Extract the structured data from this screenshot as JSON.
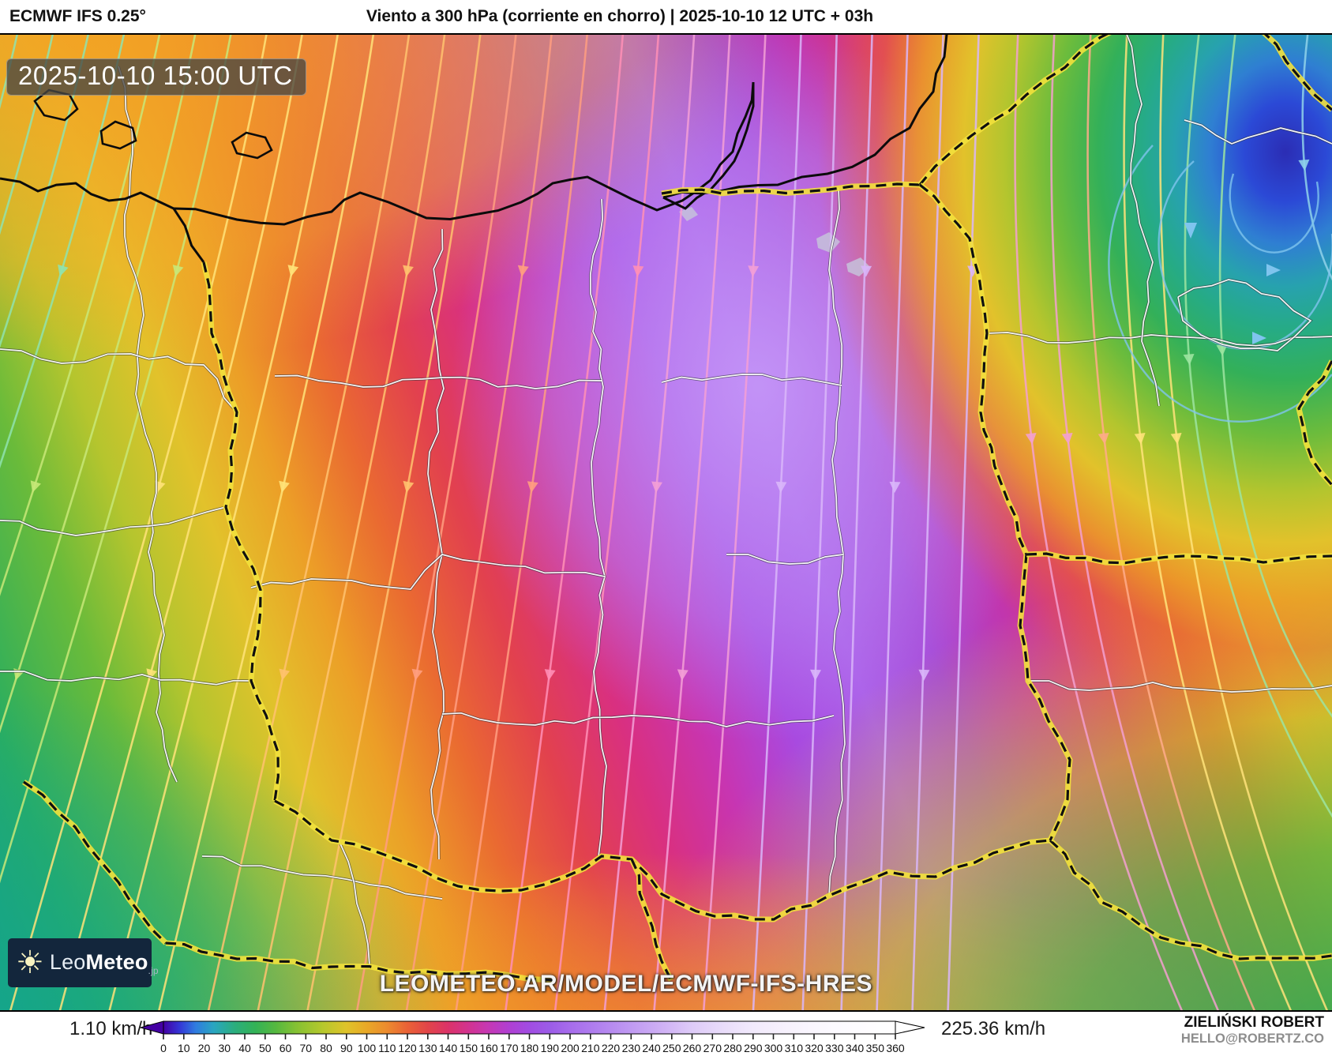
{
  "header": {
    "model_label": "ECMWF IFS 0.25°",
    "title": "Viento a 300 hPa (corriente en chorro) | 2025-10-10 12 UTC + 03h"
  },
  "map": {
    "timestamp_badge": "2025-10-10 15:00 UTC",
    "watermark": "LEOMETEO.AR/MODEL/ECMWF-IFS-HRES"
  },
  "logo": {
    "prefix": "Leo",
    "bold": "Meteo",
    "tld": ".jp"
  },
  "legend": {
    "min_label": "1.10 km/h",
    "max_label": "225.36 km/h",
    "unit": "km/h",
    "ticks": [
      0,
      10,
      20,
      30,
      40,
      50,
      60,
      70,
      80,
      90,
      100,
      110,
      120,
      130,
      140,
      150,
      160,
      170,
      180,
      190,
      200,
      210,
      220,
      230,
      240,
      250,
      260,
      270,
      280,
      290,
      300,
      310,
      320,
      330,
      340,
      350,
      360
    ],
    "scale": [
      {
        "v": 0,
        "c": "#4400a4"
      },
      {
        "v": 8,
        "c": "#3436d6"
      },
      {
        "v": 16,
        "c": "#2f7ce0"
      },
      {
        "v": 25,
        "c": "#2aa6c0"
      },
      {
        "v": 35,
        "c": "#2bae7e"
      },
      {
        "v": 45,
        "c": "#33b257"
      },
      {
        "v": 55,
        "c": "#55b840"
      },
      {
        "v": 65,
        "c": "#84c133"
      },
      {
        "v": 78,
        "c": "#b5c82c"
      },
      {
        "v": 90,
        "c": "#dfc32a"
      },
      {
        "v": 100,
        "c": "#e9a827"
      },
      {
        "v": 110,
        "c": "#ec8a2e"
      },
      {
        "v": 120,
        "c": "#ea6236"
      },
      {
        "v": 130,
        "c": "#e24549"
      },
      {
        "v": 140,
        "c": "#db3369"
      },
      {
        "v": 150,
        "c": "#d23390"
      },
      {
        "v": 160,
        "c": "#c538b4"
      },
      {
        "v": 170,
        "c": "#b03fd2"
      },
      {
        "v": 180,
        "c": "#a14ce2"
      },
      {
        "v": 190,
        "c": "#9c5ce8"
      },
      {
        "v": 200,
        "c": "#a76cec"
      },
      {
        "v": 215,
        "c": "#b282ef"
      },
      {
        "v": 230,
        "c": "#c09af2"
      },
      {
        "v": 245,
        "c": "#cfb0f5"
      },
      {
        "v": 260,
        "c": "#decbf8"
      },
      {
        "v": 275,
        "c": "#e9dcfa"
      },
      {
        "v": 290,
        "c": "#f2eafc"
      },
      {
        "v": 310,
        "c": "#f8f3fd"
      },
      {
        "v": 330,
        "c": "#fcfaff"
      },
      {
        "v": 360,
        "c": "#ffffff"
      }
    ]
  },
  "credits": {
    "author": "ZIELIŃSKI ROBERT",
    "contact": "HELLO@ROBERTZ.CO"
  },
  "colors": {
    "logo_bg": "#13263c",
    "badge_bg": "rgba(72,70,66,0.78)",
    "contact_gray": "#8d8d8d"
  }
}
